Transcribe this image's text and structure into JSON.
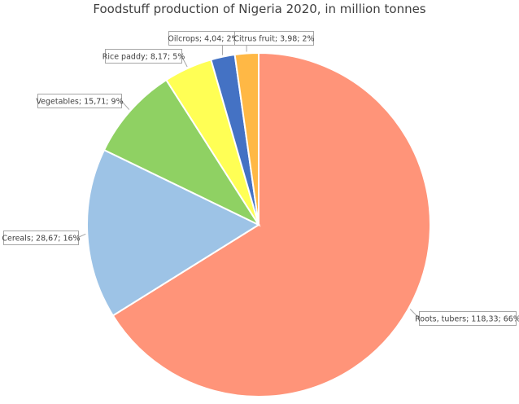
{
  "chart_data": {
    "type": "pie",
    "title": "Foodstuff production of Nigeria 2020, in million tonnes",
    "start_angle": "top",
    "direction": "clockwise",
    "slices": [
      {
        "label": "Roots, tubers",
        "value": 118.33,
        "percent": "66%",
        "display": "Roots, tubers; 118,33; 66%",
        "color": "#FF9479"
      },
      {
        "label": "Cereals",
        "value": 28.67,
        "percent": "16%",
        "display": "Cereals; 28,67; 16%",
        "color": "#9DC3E6"
      },
      {
        "label": "Vegetables",
        "value": 15.71,
        "percent": "9%",
        "display": "Vegetables; 15,71; 9%",
        "color": "#8FD163"
      },
      {
        "label": "Rice paddy",
        "value": 8.17,
        "percent": "5%",
        "display": "Rice paddy; 8,17; 5%",
        "color": "#FFFF55"
      },
      {
        "label": "Oilcrops",
        "value": 4.04,
        "percent": "2%",
        "display": "Oilcrops; 4,04; 2%",
        "color": "#4472C4"
      },
      {
        "label": "Citrus fruit",
        "value": 3.98,
        "percent": "2%",
        "display": "Citrus fruit; 3,98; 2%",
        "color": "#FFB845"
      }
    ],
    "legend": "none",
    "data_labels": "callouts"
  }
}
